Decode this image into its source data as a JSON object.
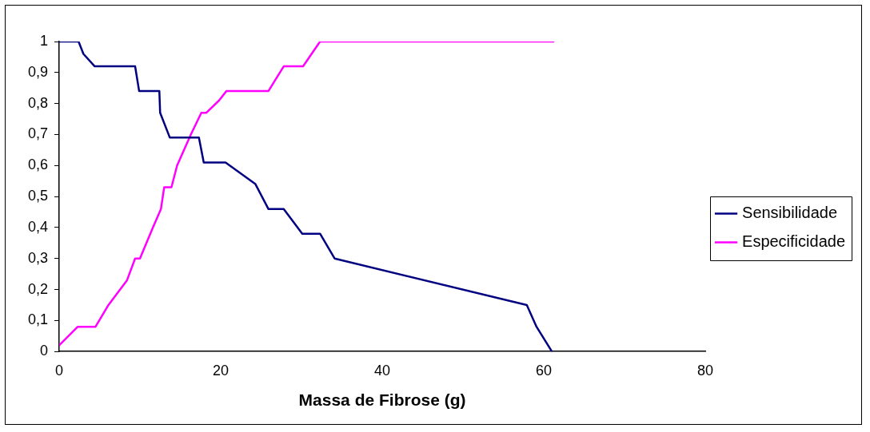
{
  "chart_data": {
    "type": "line",
    "xlabel": "Massa de Fibrose (g)",
    "xlim": [
      0,
      80
    ],
    "xticks": [
      0,
      20,
      40,
      60,
      80
    ],
    "ylim": [
      0,
      1
    ],
    "yticks": [
      0,
      {
        "value": 0.1,
        "label": "0,1"
      },
      {
        "value": 0.2,
        "label": "0,2"
      },
      {
        "value": 0.3,
        "label": "0,3"
      },
      {
        "value": 0.4,
        "label": "0,4"
      },
      {
        "value": 0.5,
        "label": "0,5"
      },
      {
        "value": 0.6,
        "label": "0,6"
      },
      {
        "value": 0.7,
        "label": "0,7"
      },
      {
        "value": 0.8,
        "label": "0,8"
      },
      {
        "value": 0.9,
        "label": "0,9"
      },
      1
    ],
    "grid": false,
    "legend": "right",
    "marker": "none",
    "line_style": "solid",
    "series": [
      {
        "name": "Sensibilidade",
        "color": "#000080",
        "x": [
          0,
          2.4,
          3,
          4.4,
          9.4,
          9.9,
          12.4,
          12.5,
          13.7,
          17.3,
          17.9,
          20.6,
          24.3,
          25.9,
          27.8,
          30.1,
          32.3,
          34.1,
          57.9,
          59.1,
          61
        ],
        "values": [
          1,
          1,
          0.96,
          0.92,
          0.92,
          0.84,
          0.84,
          0.77,
          0.69,
          0.69,
          0.61,
          0.61,
          0.54,
          0.46,
          0.46,
          0.38,
          0.38,
          0.3,
          0.15,
          0.08,
          0
        ]
      },
      {
        "name": "Especificidade",
        "color": "#ff00ff",
        "x": [
          0,
          2.3,
          4.5,
          6.1,
          8.4,
          9.4,
          10,
          11.6,
          12.6,
          13,
          13.9,
          14.6,
          16.3,
          17.6,
          18.2,
          19.8,
          20.7,
          25.9,
          27.8,
          30.2,
          32.3,
          61.2
        ],
        "values": [
          0.02,
          0.08,
          0.08,
          0.15,
          0.23,
          0.3,
          0.3,
          0.4,
          0.46,
          0.53,
          0.53,
          0.6,
          0.7,
          0.77,
          0.77,
          0.81,
          0.84,
          0.84,
          0.92,
          0.92,
          1,
          1
        ]
      }
    ]
  }
}
